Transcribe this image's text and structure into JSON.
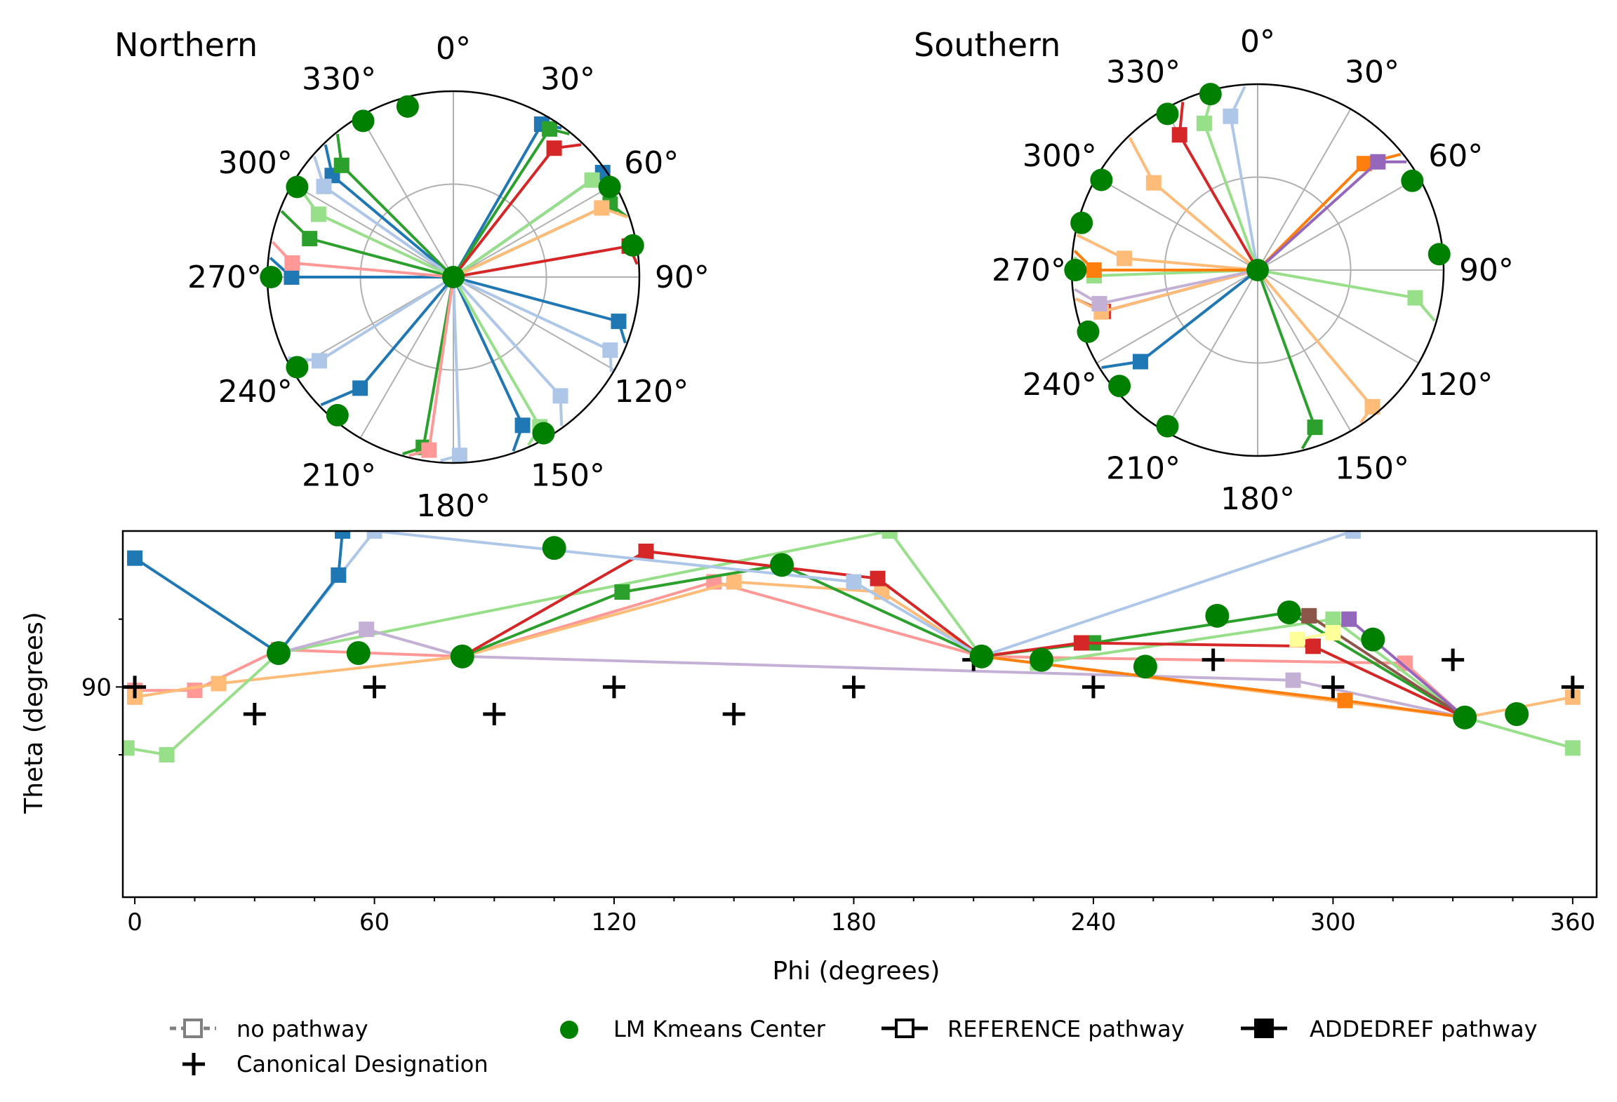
{
  "chart_data": [
    {
      "type": "scatter",
      "subtype": "polar",
      "panel": "Northern",
      "title": "Northern",
      "angle_ticks": [
        "0°",
        "30°",
        "60°",
        "90°",
        "120°",
        "150°",
        "180°",
        "210°",
        "240°",
        "270°",
        "300°",
        "330°"
      ],
      "centers": [
        {
          "phi": 0,
          "theta": 0
        },
        {
          "phi": 345,
          "theta": 0.95
        },
        {
          "phi": 330,
          "theta": 0.97
        },
        {
          "phi": 300,
          "theta": 0.97
        },
        {
          "phi": 270,
          "theta": 0.98
        },
        {
          "phi": 240,
          "theta": 0.97
        },
        {
          "phi": 220,
          "theta": 0.97
        },
        {
          "phi": 150,
          "theta": 0.97
        },
        {
          "phi": 60,
          "theta": 0.97
        },
        {
          "phi": 80,
          "theta": 0.98
        }
      ],
      "series": [
        {
          "color": "#1f77b4",
          "pathways": [
            {
              "phi": 30,
              "theta": 0.95
            },
            {
              "phi": 270,
              "theta": 0.87
            },
            {
              "phi": 220,
              "theta": 0.78
            },
            {
              "phi": 155,
              "theta": 0.88
            },
            {
              "phi": 105,
              "theta": 0.92
            },
            {
              "phi": 310,
              "theta": 0.85
            },
            {
              "phi": 55,
              "theta": 0.98
            }
          ]
        },
        {
          "color": "#aec7e8",
          "pathways": [
            {
              "phi": 115,
              "theta": 0.93
            },
            {
              "phi": 178,
              "theta": 0.96
            },
            {
              "phi": 238,
              "theta": 0.85
            },
            {
              "phi": 305,
              "theta": 0.85
            },
            {
              "phi": 138,
              "theta": 0.86
            }
          ]
        },
        {
          "color": "#2ca02c",
          "pathways": [
            {
              "phi": 33,
              "theta": 0.95
            },
            {
              "phi": 315,
              "theta": 0.85
            },
            {
              "phi": 285,
              "theta": 0.8
            },
            {
              "phi": 190,
              "theta": 0.93
            },
            {
              "phi": 65,
              "theta": 0.93
            }
          ]
        },
        {
          "color": "#98df8a",
          "pathways": [
            {
              "phi": 55,
              "theta": 0.91
            },
            {
              "phi": 150,
              "theta": 0.93
            },
            {
              "phi": 295,
              "theta": 0.8
            }
          ]
        },
        {
          "color": "#d62728",
          "pathways": [
            {
              "phi": 38,
              "theta": 0.88
            },
            {
              "phi": 80,
              "theta": 0.96
            }
          ]
        },
        {
          "color": "#ff9896",
          "pathways": [
            {
              "phi": 275,
              "theta": 0.87
            },
            {
              "phi": 188,
              "theta": 0.94
            }
          ]
        },
        {
          "color": "#ffbb78",
          "pathways": [
            {
              "phi": 65,
              "theta": 0.88
            }
          ]
        }
      ]
    },
    {
      "type": "scatter",
      "subtype": "polar",
      "panel": "Southern",
      "title": "Southern",
      "angle_ticks": [
        "0°",
        "30°",
        "60°",
        "90°",
        "120°",
        "150°",
        "180°",
        "210°",
        "240°",
        "270°",
        "300°",
        "330°"
      ],
      "centers": [
        {
          "phi": 0,
          "theta": 0
        },
        {
          "phi": 345,
          "theta": 0.98
        },
        {
          "phi": 330,
          "theta": 0.97
        },
        {
          "phi": 300,
          "theta": 0.97
        },
        {
          "phi": 285,
          "theta": 0.98
        },
        {
          "phi": 270,
          "theta": 0.98
        },
        {
          "phi": 250,
          "theta": 0.97
        },
        {
          "phi": 230,
          "theta": 0.97
        },
        {
          "phi": 210,
          "theta": 0.97
        },
        {
          "phi": 60,
          "theta": 0.96
        },
        {
          "phi": 85,
          "theta": 0.98
        }
      ],
      "series": [
        {
          "color": "#1f77b4",
          "pathways": [
            {
              "phi": 232,
              "theta": 0.8
            }
          ]
        },
        {
          "color": "#aec7e8",
          "pathways": [
            {
              "phi": 350,
              "theta": 0.84
            }
          ]
        },
        {
          "color": "#2ca02c",
          "pathways": [
            {
              "phi": 160,
              "theta": 0.9
            }
          ]
        },
        {
          "color": "#98df8a",
          "pathways": [
            {
              "phi": 340,
              "theta": 0.84
            },
            {
              "phi": 100,
              "theta": 0.86
            },
            {
              "phi": 268,
              "theta": 0.88
            }
          ]
        },
        {
          "color": "#d62728",
          "pathways": [
            {
              "phi": 330,
              "theta": 0.84
            },
            {
              "phi": 255,
              "theta": 0.86
            }
          ]
        },
        {
          "color": "#ffbb78",
          "pathways": [
            {
              "phi": 310,
              "theta": 0.73
            },
            {
              "phi": 275,
              "theta": 0.72
            },
            {
              "phi": 255,
              "theta": 0.87
            },
            {
              "phi": 140,
              "theta": 0.96
            }
          ]
        },
        {
          "color": "#ff7f0e",
          "pathways": [
            {
              "phi": 45,
              "theta": 0.81
            },
            {
              "phi": 270,
              "theta": 0.88
            }
          ]
        },
        {
          "color": "#9467bd",
          "pathways": [
            {
              "phi": 48,
              "theta": 0.87
            }
          ]
        },
        {
          "color": "#c5b0d5",
          "pathways": [
            {
              "phi": 258,
              "theta": 0.87
            }
          ]
        }
      ]
    },
    {
      "type": "line",
      "subtype": "phi-theta map",
      "title": "",
      "xlabel": "Phi (degrees)",
      "ylabel": "Theta (degrees)",
      "xlim": [
        -3,
        366
      ],
      "ylim": [
        28,
        136
      ],
      "xticks": [
        0,
        60,
        120,
        180,
        240,
        300,
        360
      ],
      "yticks": [
        90
      ],
      "canonical_designations": [
        {
          "phi": 0,
          "theta": 90
        },
        {
          "phi": 30,
          "theta": 82
        },
        {
          "phi": 60,
          "theta": 90
        },
        {
          "phi": 90,
          "theta": 82
        },
        {
          "phi": 120,
          "theta": 90
        },
        {
          "phi": 150,
          "theta": 82
        },
        {
          "phi": 180,
          "theta": 90
        },
        {
          "phi": 210,
          "theta": 98
        },
        {
          "phi": 240,
          "theta": 90
        },
        {
          "phi": 270,
          "theta": 98
        },
        {
          "phi": 300,
          "theta": 90
        },
        {
          "phi": 330,
          "theta": 98
        },
        {
          "phi": 360,
          "theta": 90
        }
      ],
      "lm_kmeans_centers": [
        {
          "phi": 36,
          "theta": 100
        },
        {
          "phi": 56,
          "theta": 100
        },
        {
          "phi": 82,
          "theta": 99
        },
        {
          "phi": 105,
          "theta": 131
        },
        {
          "phi": 162,
          "theta": 126
        },
        {
          "phi": 212,
          "theta": 99
        },
        {
          "phi": 227,
          "theta": 98
        },
        {
          "phi": 253,
          "theta": 96
        },
        {
          "phi": 271,
          "theta": 111
        },
        {
          "phi": 289,
          "theta": 112
        },
        {
          "phi": 310,
          "theta": 104
        },
        {
          "phi": 333,
          "theta": 81
        },
        {
          "phi": 346,
          "theta": 82
        }
      ],
      "series": [
        {
          "color": "#ff9896",
          "points": [
            {
              "phi": 0,
              "theta": 89
            },
            {
              "phi": 15,
              "theta": 89
            },
            {
              "phi": 36,
              "theta": 101
            },
            {
              "phi": 82,
              "theta": 99
            },
            {
              "phi": 145,
              "theta": 121
            },
            {
              "phi": 212,
              "theta": 99
            },
            {
              "phi": 318,
              "theta": 97
            },
            {
              "phi": 333,
              "theta": 81
            }
          ]
        },
        {
          "color": "#ffbb78",
          "points": [
            {
              "phi": 0,
              "theta": 87
            },
            {
              "phi": 21,
              "theta": 91
            },
            {
              "phi": 82,
              "theta": 99
            },
            {
              "phi": 150,
              "theta": 121
            },
            {
              "phi": 187,
              "theta": 118
            },
            {
              "phi": 212,
              "theta": 99
            },
            {
              "phi": 333,
              "theta": 81
            },
            {
              "phi": 360,
              "theta": 87
            }
          ]
        },
        {
          "color": "#98df8a",
          "points": [
            {
              "phi": -2,
              "theta": 72
            },
            {
              "phi": 8,
              "theta": 70
            },
            {
              "phi": 36,
              "theta": 100
            },
            {
              "phi": 189,
              "theta": 136
            },
            {
              "phi": 212,
              "theta": 99
            },
            {
              "phi": 226,
              "theta": 97
            },
            {
              "phi": 300,
              "theta": 110
            },
            {
              "phi": 333,
              "theta": 81
            },
            {
              "phi": 360,
              "theta": 72
            }
          ]
        },
        {
          "color": "#2ca02c",
          "points": [
            {
              "phi": 82,
              "theta": 99
            },
            {
              "phi": 122,
              "theta": 118
            },
            {
              "phi": 162,
              "theta": 126
            },
            {
              "phi": 212,
              "theta": 99
            },
            {
              "phi": 240,
              "theta": 103
            },
            {
              "phi": 289,
              "theta": 112
            },
            {
              "phi": 333,
              "theta": 81
            }
          ]
        },
        {
          "color": "#d62728",
          "points": [
            {
              "phi": 82,
              "theta": 99
            },
            {
              "phi": 128,
              "theta": 130
            },
            {
              "phi": 186,
              "theta": 122
            },
            {
              "phi": 212,
              "theta": 99
            },
            {
              "phi": 237,
              "theta": 103
            },
            {
              "phi": 295,
              "theta": 102
            },
            {
              "phi": 333,
              "theta": 81
            }
          ]
        },
        {
          "color": "#aec7e8",
          "points": [
            {
              "phi": 36,
              "theta": 100
            },
            {
              "phi": 60,
              "theta": 136
            },
            {
              "phi": 180,
              "theta": 121
            },
            {
              "phi": 212,
              "theta": 99
            },
            {
              "phi": 305,
              "theta": 136
            }
          ]
        },
        {
          "color": "#1f77b4",
          "points": [
            {
              "phi": 0,
              "theta": 128
            },
            {
              "phi": 36,
              "theta": 100
            },
            {
              "phi": 51,
              "theta": 123
            },
            {
              "phi": 52,
              "theta": 136
            }
          ]
        },
        {
          "color": "#c5b0d5",
          "points": [
            {
              "phi": 36,
              "theta": 100
            },
            {
              "phi": 58,
              "theta": 107
            },
            {
              "phi": 82,
              "theta": 99
            },
            {
              "phi": 290,
              "theta": 92
            },
            {
              "phi": 333,
              "theta": 81
            }
          ]
        },
        {
          "color": "#ff7f0e",
          "points": [
            {
              "phi": 212,
              "theta": 99
            },
            {
              "phi": 303,
              "theta": 86
            },
            {
              "phi": 333,
              "theta": 81
            }
          ]
        },
        {
          "color": "#8c564b",
          "points": [
            {
              "phi": 289,
              "theta": 112
            },
            {
              "phi": 294,
              "theta": 111
            },
            {
              "phi": 333,
              "theta": 81
            }
          ]
        },
        {
          "color": "#9467bd",
          "points": [
            {
              "phi": 304,
              "theta": 110
            },
            {
              "phi": 333,
              "theta": 81
            }
          ]
        },
        {
          "color": "#ffff99",
          "points": [
            {
              "phi": 291,
              "theta": 104
            },
            {
              "phi": 300,
              "theta": 106
            }
          ]
        }
      ]
    }
  ],
  "legend": {
    "placement": "bottom",
    "entries": [
      {
        "label": "no pathway",
        "marker": "open-square-dashed",
        "color": "#808080"
      },
      {
        "label": "LM Kmeans Center",
        "marker": "filled-circle",
        "color": "#008000"
      },
      {
        "label": "REFERENCE pathway",
        "marker": "open-square-solid",
        "color": "#000000"
      },
      {
        "label": "ADDEDREF pathway",
        "marker": "filled-square-solid",
        "color": "#000000"
      },
      {
        "label": "Canonical Designation",
        "marker": "plus",
        "color": "#000000"
      }
    ]
  }
}
